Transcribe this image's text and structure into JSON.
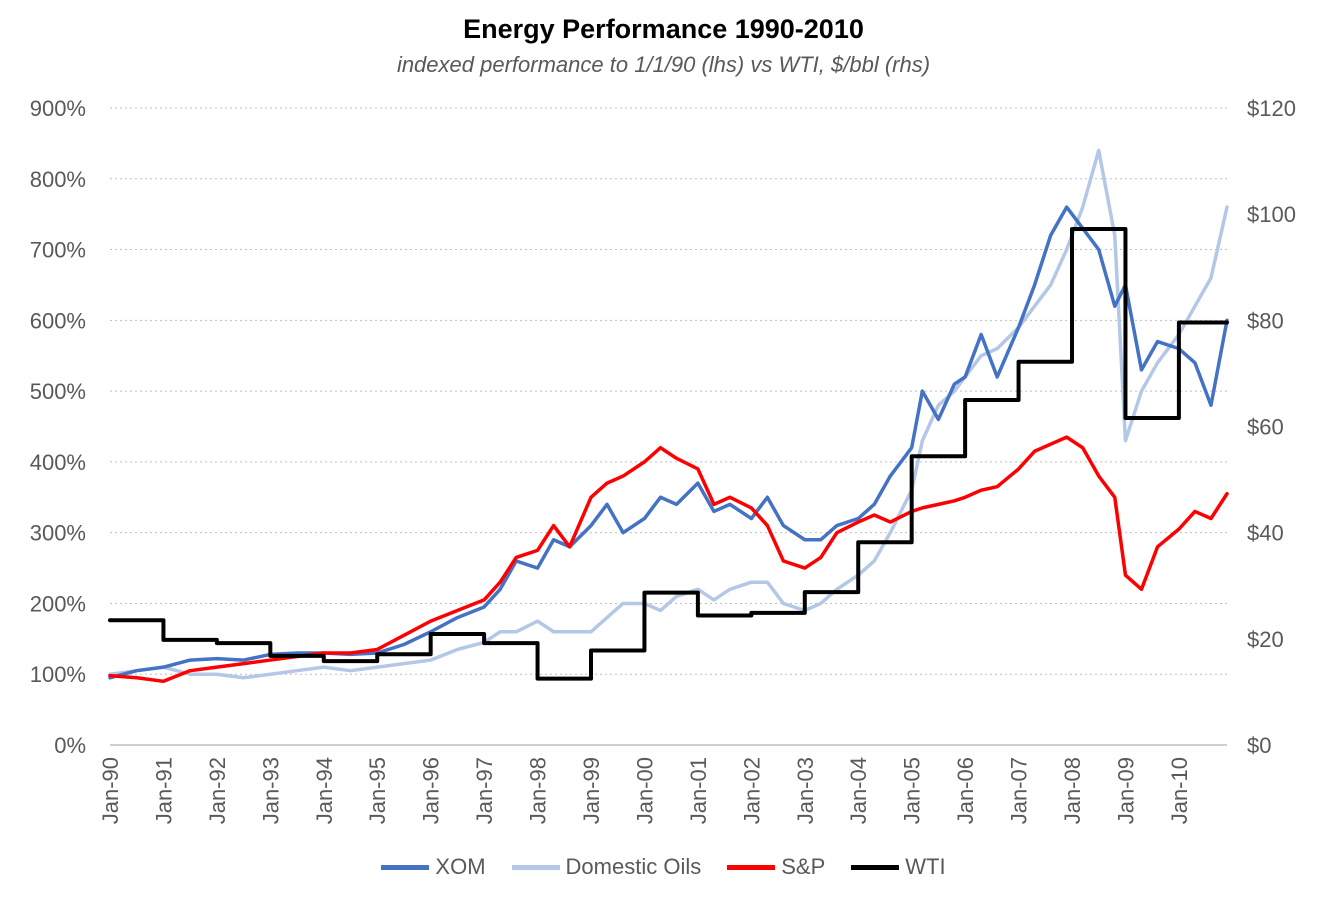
{
  "chart_data": {
    "type": "line",
    "title": "Energy Performance 1990-2010",
    "subtitle": "indexed performance to 1/1/90 (lhs) vs WTI, $/bbl (rhs)",
    "xlim": [
      1990.0,
      2010.9
    ],
    "x_ticks": [
      "Jan-90",
      "Jan-91",
      "Jan-92",
      "Jan-93",
      "Jan-94",
      "Jan-95",
      "Jan-96",
      "Jan-97",
      "Jan-98",
      "Jan-99",
      "Jan-00",
      "Jan-01",
      "Jan-02",
      "Jan-03",
      "Jan-04",
      "Jan-05",
      "Jan-06",
      "Jan-07",
      "Jan-08",
      "Jan-09",
      "Jan-10"
    ],
    "y_left": {
      "ticks": [
        "0%",
        "100%",
        "200%",
        "300%",
        "400%",
        "500%",
        "600%",
        "700%",
        "800%",
        "900%"
      ],
      "ylim": [
        0,
        9
      ]
    },
    "y_right": {
      "ticks": [
        "$0",
        "$20",
        "$40",
        "$60",
        "$80",
        "$100",
        "$120"
      ],
      "ylim": [
        0,
        120
      ]
    },
    "grid": "horizontal dotted",
    "legend_position": "bottom",
    "series": [
      {
        "name": "XOM",
        "color": "#4472C4",
        "axis": "left",
        "x": [
          1990.0,
          1990.5,
          1991.0,
          1991.5,
          1992.0,
          1992.5,
          1993.0,
          1993.5,
          1994.0,
          1994.5,
          1995.0,
          1995.5,
          1996.0,
          1996.5,
          1997.0,
          1997.3,
          1997.6,
          1998.0,
          1998.3,
          1998.6,
          1999.0,
          1999.3,
          1999.6,
          2000.0,
          2000.3,
          2000.6,
          2001.0,
          2001.3,
          2001.6,
          2002.0,
          2002.3,
          2002.6,
          2003.0,
          2003.3,
          2003.6,
          2004.0,
          2004.3,
          2004.6,
          2005.0,
          2005.2,
          2005.5,
          2005.8,
          2006.0,
          2006.3,
          2006.6,
          2007.0,
          2007.3,
          2007.6,
          2007.9,
          2008.2,
          2008.5,
          2008.8,
          2009.0,
          2009.3,
          2009.6,
          2010.0,
          2010.3,
          2010.6,
          2010.9
        ],
        "y": [
          0.95,
          1.05,
          1.1,
          1.2,
          1.22,
          1.2,
          1.28,
          1.3,
          1.3,
          1.28,
          1.3,
          1.42,
          1.6,
          1.8,
          1.95,
          2.2,
          2.6,
          2.5,
          2.9,
          2.8,
          3.1,
          3.4,
          3.0,
          3.2,
          3.5,
          3.4,
          3.7,
          3.3,
          3.4,
          3.2,
          3.5,
          3.1,
          2.9,
          2.9,
          3.1,
          3.2,
          3.4,
          3.8,
          4.2,
          5.0,
          4.6,
          5.1,
          5.2,
          5.8,
          5.2,
          5.9,
          6.5,
          7.2,
          7.6,
          7.3,
          7.0,
          6.2,
          6.5,
          5.3,
          5.7,
          5.6,
          5.4,
          4.8,
          6.0
        ]
      },
      {
        "name": "Domestic Oils",
        "color": "#B4C7E7",
        "axis": "left",
        "x": [
          1990.0,
          1990.5,
          1991.0,
          1991.5,
          1992.0,
          1992.5,
          1993.0,
          1993.5,
          1994.0,
          1994.5,
          1995.0,
          1995.5,
          1996.0,
          1996.5,
          1997.0,
          1997.3,
          1997.6,
          1998.0,
          1998.3,
          1998.6,
          1999.0,
          1999.3,
          1999.6,
          2000.0,
          2000.3,
          2000.6,
          2001.0,
          2001.3,
          2001.6,
          2002.0,
          2002.3,
          2002.6,
          2003.0,
          2003.3,
          2003.6,
          2004.0,
          2004.3,
          2004.6,
          2005.0,
          2005.2,
          2005.5,
          2005.8,
          2006.0,
          2006.3,
          2006.6,
          2007.0,
          2007.3,
          2007.6,
          2007.9,
          2008.2,
          2008.5,
          2008.8,
          2009.0,
          2009.3,
          2009.6,
          2010.0,
          2010.3,
          2010.6,
          2010.9
        ],
        "y": [
          1.0,
          1.05,
          1.1,
          1.0,
          1.0,
          0.95,
          1.0,
          1.05,
          1.1,
          1.05,
          1.1,
          1.15,
          1.2,
          1.35,
          1.45,
          1.6,
          1.6,
          1.75,
          1.6,
          1.6,
          1.6,
          1.8,
          2.0,
          2.0,
          1.9,
          2.1,
          2.2,
          2.05,
          2.2,
          2.3,
          2.3,
          2.0,
          1.9,
          2.0,
          2.2,
          2.4,
          2.6,
          3.0,
          3.6,
          4.3,
          4.8,
          5.0,
          5.2,
          5.5,
          5.6,
          5.9,
          6.2,
          6.5,
          7.0,
          7.6,
          8.4,
          7.2,
          4.3,
          5.0,
          5.4,
          5.8,
          6.2,
          6.6,
          7.6
        ]
      },
      {
        "name": "S&P",
        "color": "#FF0000",
        "axis": "left",
        "x": [
          1990.0,
          1990.5,
          1991.0,
          1991.5,
          1992.0,
          1992.5,
          1993.0,
          1993.5,
          1994.0,
          1994.5,
          1995.0,
          1995.5,
          1996.0,
          1996.5,
          1997.0,
          1997.3,
          1997.6,
          1998.0,
          1998.3,
          1998.6,
          1999.0,
          1999.3,
          1999.6,
          2000.0,
          2000.3,
          2000.6,
          2001.0,
          2001.3,
          2001.6,
          2002.0,
          2002.3,
          2002.6,
          2003.0,
          2003.3,
          2003.6,
          2004.0,
          2004.3,
          2004.6,
          2005.0,
          2005.2,
          2005.5,
          2005.8,
          2006.0,
          2006.3,
          2006.6,
          2007.0,
          2007.3,
          2007.6,
          2007.9,
          2008.2,
          2008.5,
          2008.8,
          2009.0,
          2009.3,
          2009.6,
          2010.0,
          2010.3,
          2010.6,
          2010.9
        ],
        "y": [
          0.98,
          0.95,
          0.9,
          1.05,
          1.1,
          1.15,
          1.2,
          1.25,
          1.3,
          1.3,
          1.35,
          1.55,
          1.75,
          1.9,
          2.05,
          2.3,
          2.65,
          2.75,
          3.1,
          2.8,
          3.5,
          3.7,
          3.8,
          4.0,
          4.2,
          4.05,
          3.9,
          3.4,
          3.5,
          3.35,
          3.1,
          2.6,
          2.5,
          2.65,
          3.0,
          3.15,
          3.25,
          3.15,
          3.3,
          3.35,
          3.4,
          3.45,
          3.5,
          3.6,
          3.65,
          3.9,
          4.15,
          4.25,
          4.35,
          4.2,
          3.8,
          3.5,
          2.4,
          2.2,
          2.8,
          3.05,
          3.3,
          3.2,
          3.55
        ]
      },
      {
        "name": "WTI",
        "color": "#000000",
        "axis": "right",
        "step": true,
        "x": [
          1990.0,
          1991.0,
          1992.0,
          1993.0,
          1994.0,
          1995.0,
          1996.0,
          1997.0,
          1998.0,
          1999.0,
          2000.0,
          2001.0,
          2002.0,
          2003.0,
          2004.0,
          2005.0,
          2006.0,
          2007.0,
          2008.0,
          2009.0,
          2010.0,
          2010.9
        ],
        "y": [
          23.5,
          19.8,
          19.2,
          16.8,
          15.8,
          17.1,
          20.9,
          19.2,
          12.5,
          17.8,
          28.7,
          24.4,
          24.9,
          28.8,
          38.2,
          54.4,
          65.0,
          72.2,
          97.2,
          61.6,
          79.6,
          79.6
        ]
      }
    ]
  }
}
